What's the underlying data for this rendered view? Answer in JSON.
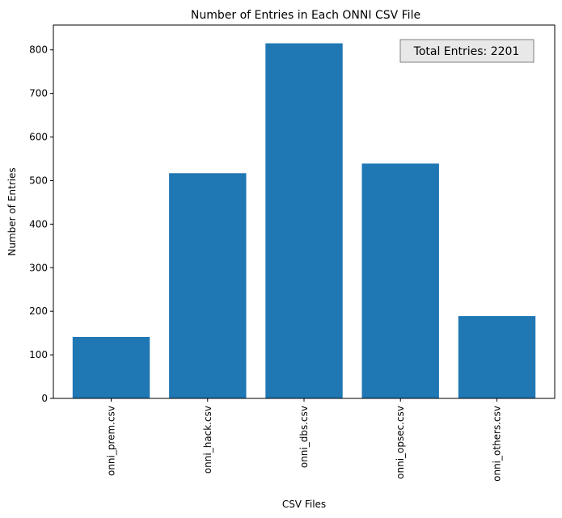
{
  "chart_data": {
    "type": "bar",
    "title": "Number of Entries in Each ONNI CSV File",
    "xlabel": "CSV Files",
    "ylabel": "Number of Entries",
    "categories": [
      "onni_prem.csv",
      "onni_hack.csv",
      "onni_dbs.csv",
      "onni_opsec.csv",
      "onni_others.csv"
    ],
    "values": [
      141,
      517,
      815,
      539,
      189
    ],
    "ylim": [
      0,
      857
    ],
    "yticks": [
      0,
      100,
      200,
      300,
      400,
      500,
      600,
      700,
      800
    ],
    "bar_color": "#1f77b4",
    "annotation": {
      "text": "Total Entries: 2201",
      "placement": "top-right",
      "background": "#e8e8e8",
      "border": "#7f7f7f"
    },
    "grid": false,
    "legend": false
  }
}
